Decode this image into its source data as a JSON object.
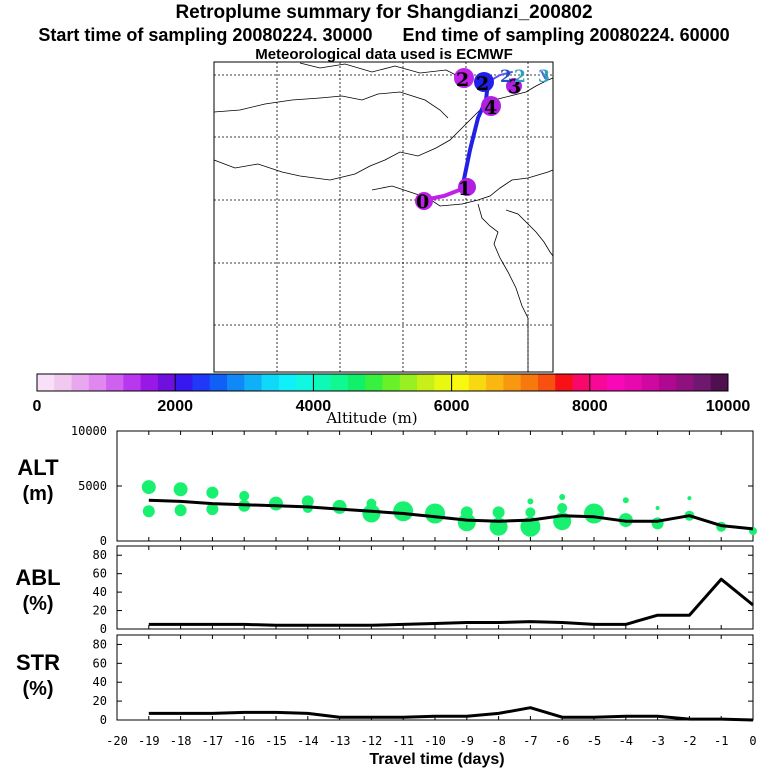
{
  "header": {
    "title": "Retroplume summary for Shangdianzi_200802",
    "start_label": "Start time of sampling 20080224. 30000",
    "end_label": "End time of sampling 20080224. 60000",
    "met_label": "Meteorological data used is ECMWF"
  },
  "map": {
    "trajectory_labels": [
      "0",
      "1",
      "2",
      "2",
      "3",
      "4",
      "2",
      "2",
      "3"
    ]
  },
  "colorbar": {
    "label": "Altitude (m)",
    "ticks": [
      "0",
      "2000",
      "4000",
      "6000",
      "8000",
      "10000"
    ],
    "colors": [
      "#f8e0f8",
      "#f0c8f0",
      "#e8a8f0",
      "#e088f0",
      "#d060f0",
      "#b838f0",
      "#9818e8",
      "#7010e0",
      "#3818f0",
      "#2038f8",
      "#1060f8",
      "#1088f8",
      "#10b0f8",
      "#10d8f8",
      "#10f0f8",
      "#10f8e0",
      "#10f8b8",
      "#10f890",
      "#10f068",
      "#38f040",
      "#68f028",
      "#98f020",
      "#c8f018",
      "#e8f810",
      "#f8f810",
      "#f8d810",
      "#f8b810",
      "#f89810",
      "#f87810",
      "#f85010",
      "#f81018",
      "#f80868",
      "#f80898",
      "#f808b8",
      "#e808b0",
      "#d008a0",
      "#b00890",
      "#901080",
      "#701870",
      "#501050"
    ]
  },
  "chart_data": [
    {
      "type": "scatter",
      "panel": "ALT",
      "ylabel": "ALT\n(m)",
      "ylabel_lines": [
        "ALT",
        "(m)"
      ],
      "ylim": [
        0,
        10000
      ],
      "yticks": [
        "10000",
        "5000",
        "0"
      ],
      "ytick_values": [
        10000,
        5000,
        0
      ],
      "series": [
        {
          "name": "mean altitude",
          "x": [
            -19,
            -18,
            -17,
            -16,
            -15,
            -14,
            -13,
            -12,
            -11,
            -10,
            -9,
            -8,
            -7,
            -6,
            -5,
            -4,
            -3,
            -2,
            -1,
            0
          ],
          "y": [
            3700,
            3600,
            3400,
            3300,
            3200,
            3100,
            2900,
            2700,
            2500,
            2200,
            1900,
            1800,
            1900,
            2300,
            2200,
            1800,
            1800,
            2300,
            1400,
            1100
          ]
        },
        {
          "name": "plume clusters",
          "points": [
            {
              "x": -19,
              "y": 4900,
              "s": 7
            },
            {
              "x": -19,
              "y": 2700,
              "s": 6
            },
            {
              "x": -18,
              "y": 4700,
              "s": 7
            },
            {
              "x": -18,
              "y": 2800,
              "s": 6
            },
            {
              "x": -17,
              "y": 4400,
              "s": 6
            },
            {
              "x": -17,
              "y": 2900,
              "s": 6
            },
            {
              "x": -16,
              "y": 4100,
              "s": 5
            },
            {
              "x": -16,
              "y": 3200,
              "s": 6
            },
            {
              "x": -15,
              "y": 3400,
              "s": 7
            },
            {
              "x": -14,
              "y": 3600,
              "s": 6
            },
            {
              "x": -14,
              "y": 3000,
              "s": 5
            },
            {
              "x": -13,
              "y": 3100,
              "s": 7
            },
            {
              "x": -12,
              "y": 3400,
              "s": 5
            },
            {
              "x": -12,
              "y": 2500,
              "s": 9
            },
            {
              "x": -11,
              "y": 2700,
              "s": 10
            },
            {
              "x": -10,
              "y": 2500,
              "s": 10
            },
            {
              "x": -9,
              "y": 2600,
              "s": 6
            },
            {
              "x": -9,
              "y": 1700,
              "s": 9
            },
            {
              "x": -8,
              "y": 2600,
              "s": 6
            },
            {
              "x": -8,
              "y": 1300,
              "s": 9
            },
            {
              "x": -7,
              "y": 3600,
              "s": 3
            },
            {
              "x": -7,
              "y": 2600,
              "s": 5
            },
            {
              "x": -7,
              "y": 1300,
              "s": 10
            },
            {
              "x": -6,
              "y": 4000,
              "s": 3
            },
            {
              "x": -6,
              "y": 3000,
              "s": 5
            },
            {
              "x": -6,
              "y": 1800,
              "s": 9
            },
            {
              "x": -5,
              "y": 2500,
              "s": 10
            },
            {
              "x": -4,
              "y": 3700,
              "s": 3
            },
            {
              "x": -4,
              "y": 1900,
              "s": 7
            },
            {
              "x": -3,
              "y": 3000,
              "s": 2
            },
            {
              "x": -3,
              "y": 1600,
              "s": 6
            },
            {
              "x": -2,
              "y": 3900,
              "s": 2
            },
            {
              "x": -2,
              "y": 2300,
              "s": 5
            },
            {
              "x": -1,
              "y": 1300,
              "s": 5
            },
            {
              "x": 0,
              "y": 900,
              "s": 4
            }
          ]
        }
      ]
    },
    {
      "type": "line",
      "panel": "ABL",
      "ylabel": "ABL\n(%)",
      "ylabel_lines": [
        "ABL",
        "(%)"
      ],
      "ylim": [
        0,
        90
      ],
      "yticks": [
        "80",
        "60",
        "40",
        "20",
        "0"
      ],
      "ytick_values": [
        80,
        60,
        40,
        20,
        0
      ],
      "series": [
        {
          "name": "ABL",
          "x": [
            -19,
            -18,
            -17,
            -16,
            -15,
            -14,
            -13,
            -12,
            -11,
            -10,
            -9,
            -8,
            -7,
            -6,
            -5,
            -4,
            -3,
            -2,
            -1,
            0
          ],
          "y": [
            5,
            5,
            5,
            5,
            4,
            4,
            4,
            4,
            5,
            6,
            7,
            7,
            8,
            7,
            5,
            5,
            15,
            15,
            54,
            26
          ]
        }
      ]
    },
    {
      "type": "line",
      "panel": "STR",
      "ylabel": "STR\n(%)",
      "ylabel_lines": [
        "STR",
        "(%)"
      ],
      "ylim": [
        0,
        90
      ],
      "yticks": [
        "80",
        "60",
        "40",
        "20",
        "0"
      ],
      "ytick_values": [
        80,
        60,
        40,
        20,
        0
      ],
      "xlabel": "Travel time (days)",
      "xlim": [
        -20,
        0
      ],
      "xticks": [
        "-20",
        "-19",
        "-18",
        "-17",
        "-16",
        "-15",
        "-14",
        "-13",
        "-12",
        "-11",
        "-10",
        "-9",
        "-8",
        "-7",
        "-6",
        "-5",
        "-4",
        "-3",
        "-2",
        "-1",
        "0"
      ],
      "series": [
        {
          "name": "STR",
          "x": [
            -19,
            -18,
            -17,
            -16,
            -15,
            -14,
            -13,
            -12,
            -11,
            -10,
            -9,
            -8,
            -7,
            -6,
            -5,
            -4,
            -3,
            -2,
            -1,
            0
          ],
          "y": [
            7,
            7,
            7,
            8,
            8,
            7,
            3,
            3,
            3,
            4,
            4,
            7,
            13,
            3,
            3,
            4,
            4,
            1,
            1,
            0
          ]
        }
      ]
    }
  ]
}
